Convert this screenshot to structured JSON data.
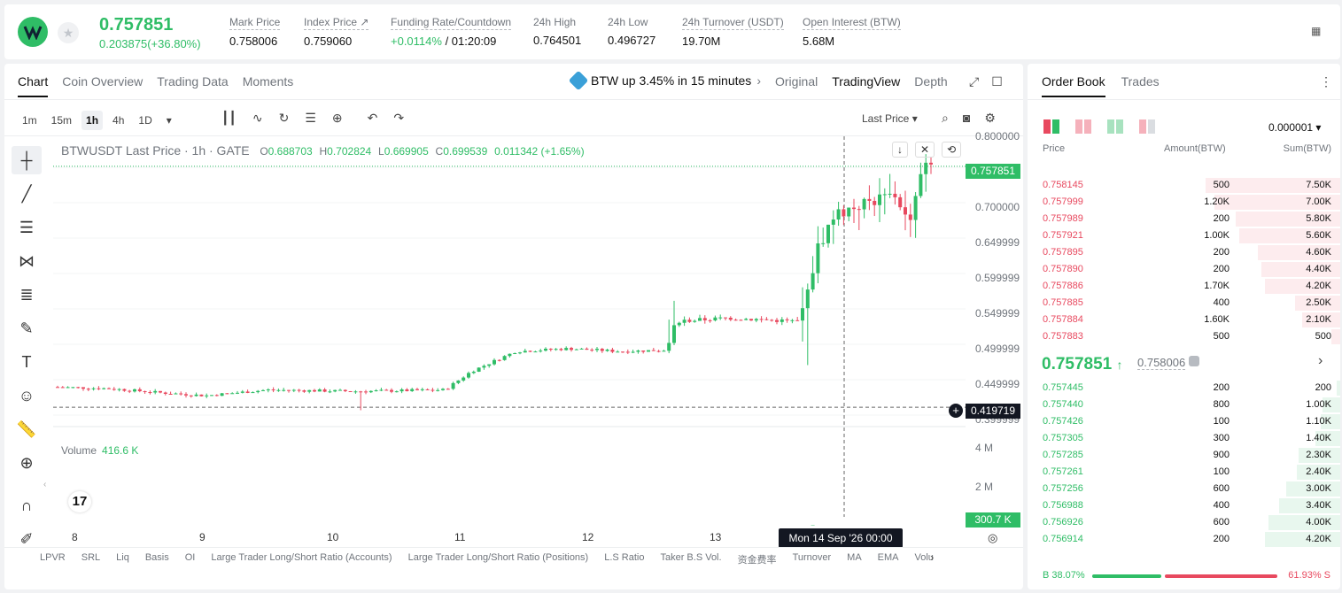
{
  "header": {
    "last_price": "0.757851",
    "change": "0.203875(+36.80%)",
    "stats": [
      {
        "label": "Mark Price",
        "value": "0.758006"
      },
      {
        "label": "Index Price ↗",
        "value": "0.759060"
      },
      {
        "label": "Funding Rate/Countdown",
        "value_pos": "+0.0114%",
        "value": " / 01:20:09"
      },
      {
        "label": "24h High",
        "value": "0.764501"
      },
      {
        "label": "24h Low",
        "value": "0.496727"
      },
      {
        "label": "24h Turnover (USDT)",
        "value": "19.70M"
      },
      {
        "label": "Open Interest (BTW)",
        "value": "5.68M"
      }
    ]
  },
  "chart_tabs": [
    "Chart",
    "Coin Overview",
    "Trading Data",
    "Moments"
  ],
  "promo": "BTW up 3.45% in 15 minutes",
  "views": [
    "Original",
    "TradingView",
    "Depth"
  ],
  "intervals": [
    "1m",
    "15m",
    "1h",
    "4h",
    "1D"
  ],
  "price_type": "Last Price",
  "legend": {
    "title": "BTWUSDT Last Price · 1h · GATE",
    "o_label": "O",
    "o": "0.688703",
    "h_label": "H",
    "h": "0.702824",
    "l_label": "L",
    "l": "0.669905",
    "c_label": "C",
    "c": "0.699539",
    "chg": "0.011342 (+1.65%)"
  },
  "price_axis": [
    "0.800000",
    "0.700000",
    "0.649999",
    "0.599999",
    "0.549999",
    "0.499999",
    "0.449999",
    "0.399999"
  ],
  "price_badges": {
    "last": "0.757851",
    "cursor": "0.419719",
    "volume": "300.7 K"
  },
  "volume": {
    "label": "Volume",
    "value": "416.6 K",
    "axis": [
      "4 M",
      "2 M"
    ]
  },
  "x_axis": [
    "8",
    "9",
    "10",
    "11",
    "12",
    "13"
  ],
  "crosshair_date": "Mon 14 Sep '26   00:00",
  "indicators": [
    "LPVR",
    "SRL",
    "Liq",
    "Basis",
    "OI",
    "Large Trader Long/Short Ratio (Accounts)",
    "Large Trader Long/Short Ratio (Positions)",
    "L.S Ratio",
    "Taker B.S Vol.",
    "资金费率",
    "Turnover",
    "MA",
    "EMA",
    "Volu"
  ],
  "chart_data": {
    "type": "candlestick",
    "colors": {
      "up": "#2fbd66",
      "down": "#e8495f"
    },
    "ylim": [
      0.39,
      0.8
    ],
    "volume_ylim": [
      0,
      4500000
    ],
    "x_categories": [
      "8",
      "9",
      "10",
      "11",
      "12",
      "13",
      "14"
    ]
  },
  "book": {
    "tabs": [
      "Order Book",
      "Trades"
    ],
    "precision": "0.000001",
    "headers": {
      "price": "Price",
      "amount": "Amount(BTW)",
      "sum": "Sum(BTW)"
    },
    "asks": [
      {
        "price": "0.758145",
        "amount": "500",
        "sum": "7.50K",
        "depth": 0.375
      },
      {
        "price": "0.757999",
        "amount": "1.20K",
        "sum": "7.00K",
        "depth": 0.35
      },
      {
        "price": "0.757989",
        "amount": "200",
        "sum": "5.80K",
        "depth": 0.29
      },
      {
        "price": "0.757921",
        "amount": "1.00K",
        "sum": "5.60K",
        "depth": 0.28
      },
      {
        "price": "0.757895",
        "amount": "200",
        "sum": "4.60K",
        "depth": 0.23
      },
      {
        "price": "0.757890",
        "amount": "200",
        "sum": "4.40K",
        "depth": 0.22
      },
      {
        "price": "0.757886",
        "amount": "1.70K",
        "sum": "4.20K",
        "depth": 0.21
      },
      {
        "price": "0.757885",
        "amount": "400",
        "sum": "2.50K",
        "depth": 0.125
      },
      {
        "price": "0.757884",
        "amount": "1.60K",
        "sum": "2.10K",
        "depth": 0.105
      },
      {
        "price": "0.757883",
        "amount": "500",
        "sum": "500",
        "depth": 0.025
      }
    ],
    "mid": {
      "price": "0.757851",
      "mark": "0.758006"
    },
    "bids": [
      {
        "price": "0.757445",
        "amount": "200",
        "sum": "200",
        "depth": 0.01
      },
      {
        "price": "0.757440",
        "amount": "800",
        "sum": "1.00K",
        "depth": 0.05
      },
      {
        "price": "0.757426",
        "amount": "100",
        "sum": "1.10K",
        "depth": 0.055
      },
      {
        "price": "0.757305",
        "amount": "300",
        "sum": "1.40K",
        "depth": 0.07
      },
      {
        "price": "0.757285",
        "amount": "900",
        "sum": "2.30K",
        "depth": 0.115
      },
      {
        "price": "0.757261",
        "amount": "100",
        "sum": "2.40K",
        "depth": 0.12
      },
      {
        "price": "0.757256",
        "amount": "600",
        "sum": "3.00K",
        "depth": 0.15
      },
      {
        "price": "0.756988",
        "amount": "400",
        "sum": "3.40K",
        "depth": 0.17
      },
      {
        "price": "0.756926",
        "amount": "600",
        "sum": "4.00K",
        "depth": 0.2
      },
      {
        "price": "0.756914",
        "amount": "200",
        "sum": "4.20K",
        "depth": 0.21
      }
    ],
    "ratio": {
      "buy": "B 38.07%",
      "sell": "61.93% S",
      "buy_fraction": 0.3807
    }
  }
}
